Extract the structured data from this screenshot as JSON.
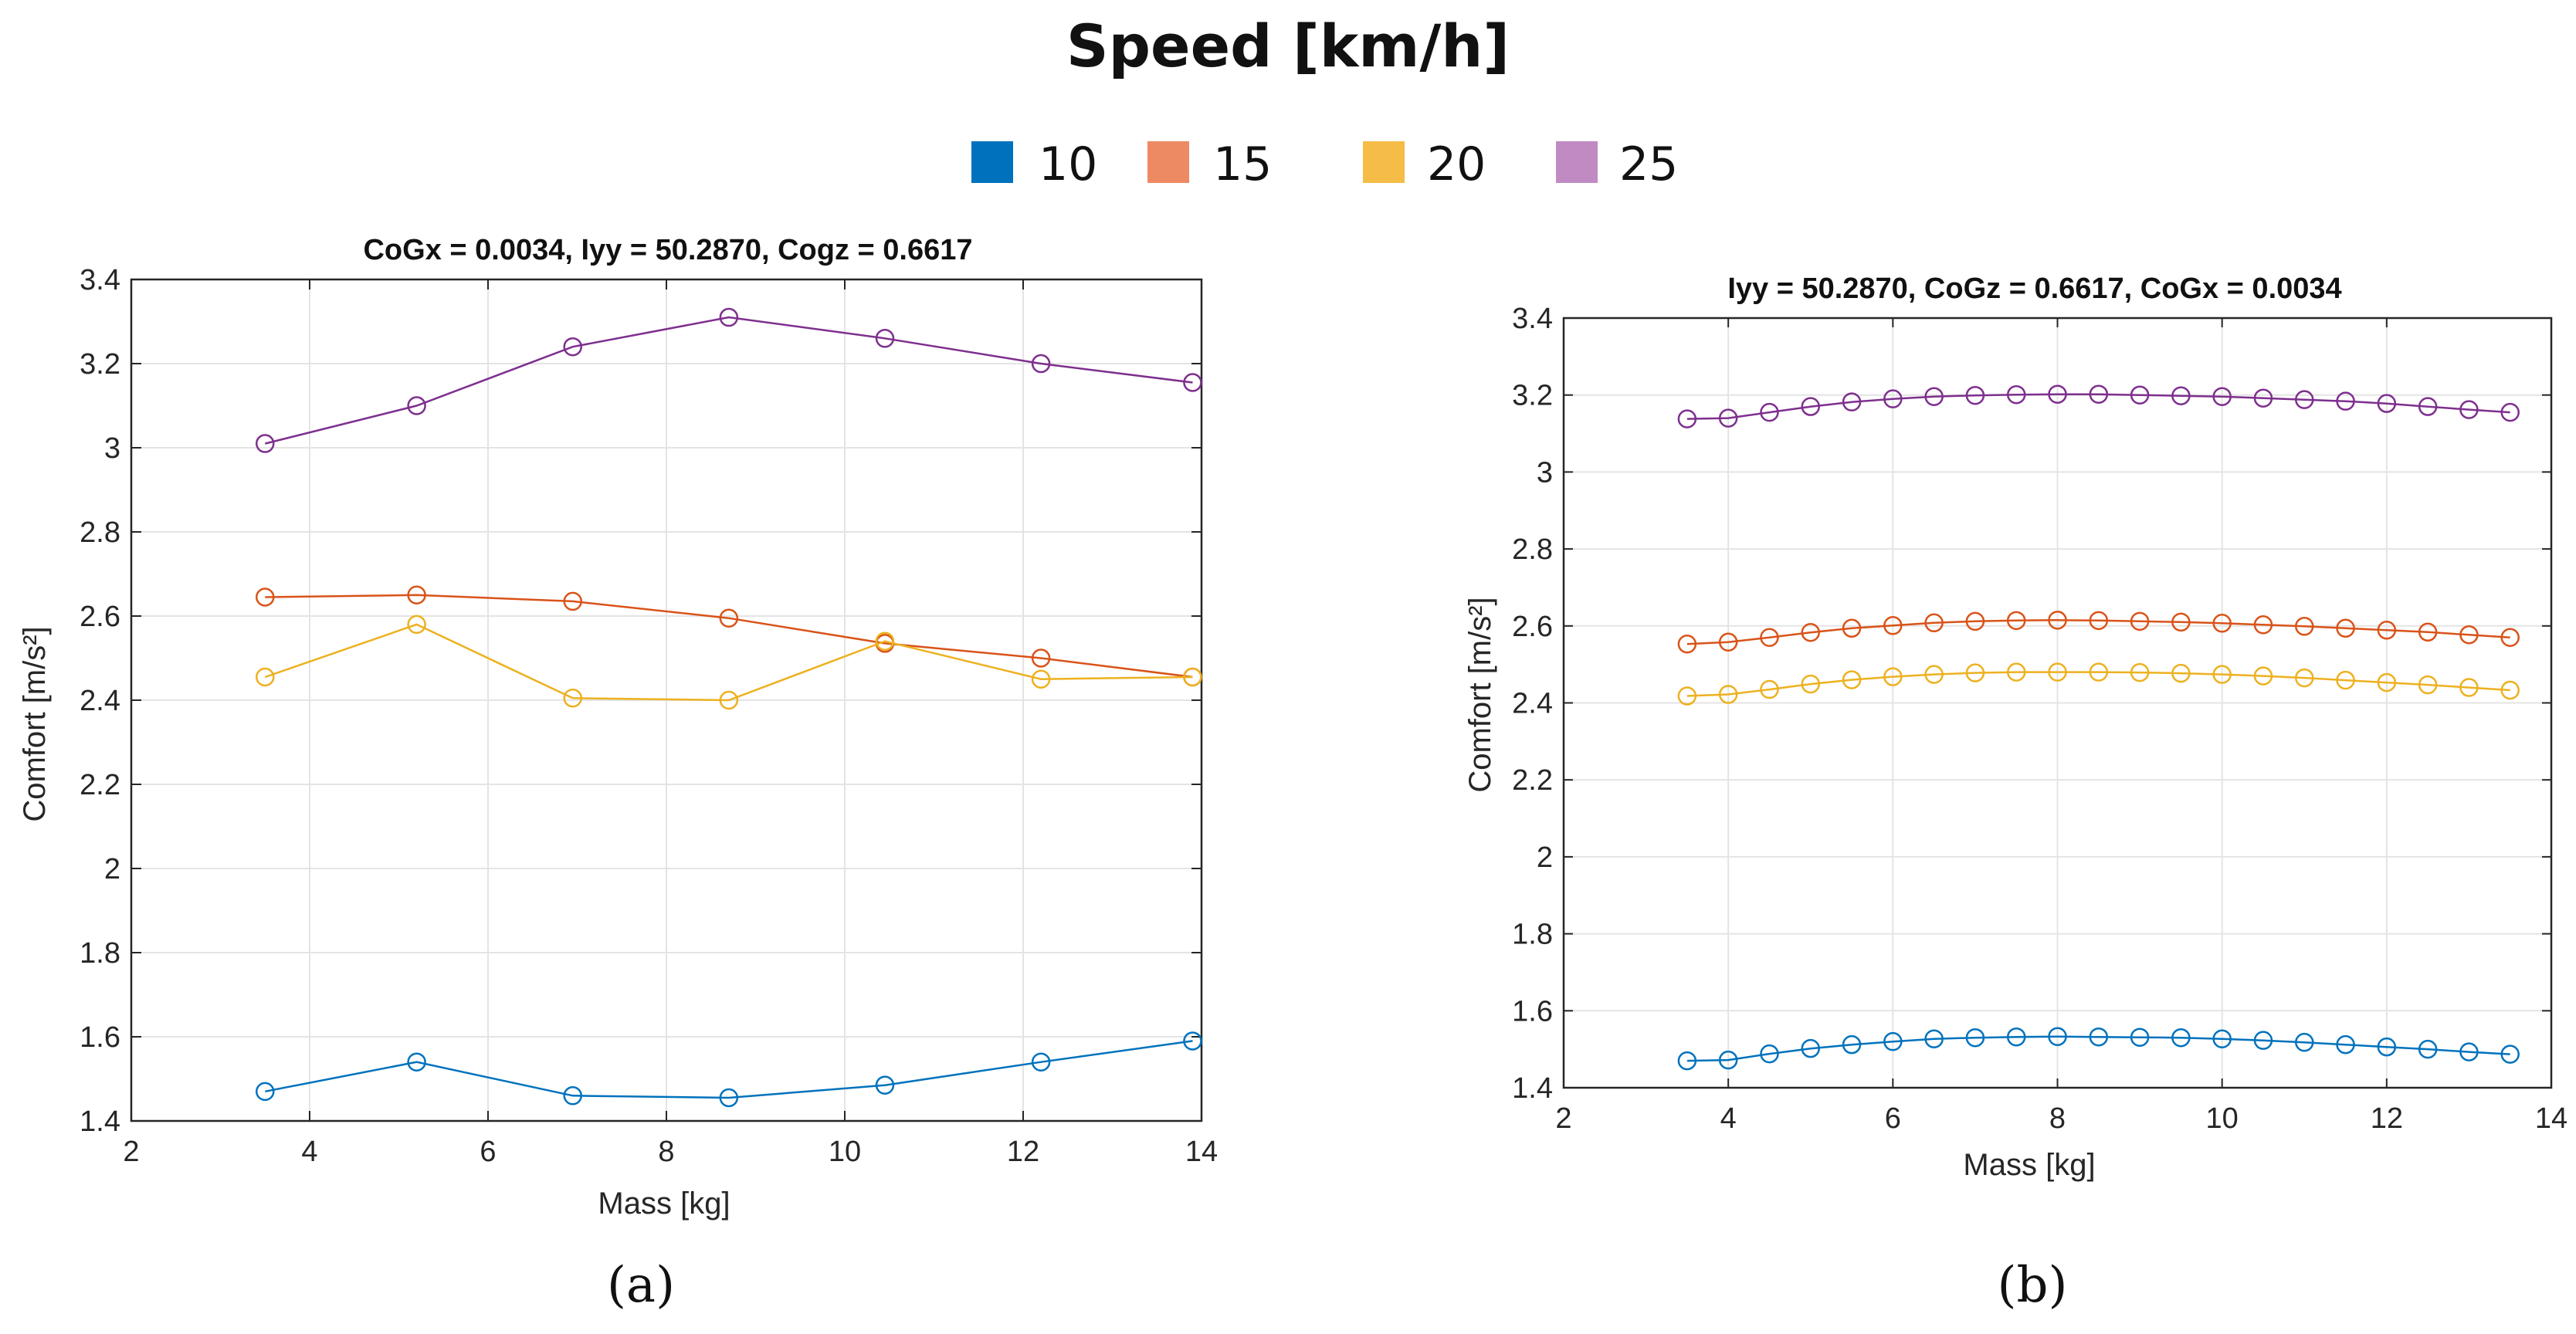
{
  "legend": {
    "title": "Speed [km/h]",
    "entries": [
      {
        "label": "10",
        "color": "#0072BD"
      },
      {
        "label": "15",
        "color": "#EE8A63"
      },
      {
        "label": "20",
        "color": "#F5BC47"
      },
      {
        "label": "25",
        "color": "#C08BC3"
      }
    ]
  },
  "line_colors": [
    "#0072BD",
    "#D95319",
    "#EDB120",
    "#7E2F8E"
  ],
  "chart_data": [
    {
      "type": "line",
      "panel_label": "(a)",
      "title": "CoGx = 0.0034, Iyy = 50.2870,  Cogz = 0.6617",
      "xlabel": "Mass [kg]",
      "ylabel": "Comfort [m/s²]",
      "xlim": [
        2,
        14
      ],
      "ylim": [
        1.4,
        3.4
      ],
      "xticks": [
        2,
        4,
        6,
        8,
        10,
        12,
        14
      ],
      "xtick_labels": [
        "2",
        "4",
        "6",
        "8",
        "10",
        "12",
        "14"
      ],
      "yticks": [
        1.4,
        1.6,
        1.8,
        2,
        2.2,
        2.4,
        2.6,
        2.8,
        3,
        3.2,
        3.4
      ],
      "ytick_labels": [
        "1.4",
        "1.6",
        "1.8",
        "2",
        "2.2",
        "2.4",
        "2.6",
        "2.8",
        "3",
        "3.2",
        "3.4"
      ],
      "grid": true,
      "x": [
        3.5,
        5.2,
        6.95,
        8.7,
        10.45,
        12.2,
        13.9
      ],
      "series": [
        {
          "name": "10",
          "values": [
            1.47,
            1.54,
            1.46,
            1.455,
            1.485,
            1.54,
            1.59
          ]
        },
        {
          "name": "15",
          "values": [
            2.645,
            2.65,
            2.635,
            2.595,
            2.535,
            2.5,
            2.455
          ]
        },
        {
          "name": "20",
          "values": [
            2.455,
            2.58,
            2.405,
            2.4,
            2.54,
            2.45,
            2.455
          ]
        },
        {
          "name": "25",
          "values": [
            3.01,
            3.1,
            3.24,
            3.31,
            3.26,
            3.2,
            3.155
          ]
        }
      ]
    },
    {
      "type": "line",
      "panel_label": "(b)",
      "title": "Iyy = 50.2870, CoGz = 0.6617,  CoGx = 0.0034",
      "xlabel": "Mass [kg]",
      "ylabel": "Comfort [m/s²]",
      "xlim": [
        2,
        14
      ],
      "ylim": [
        1.4,
        3.4
      ],
      "xticks": [
        2,
        4,
        6,
        8,
        10,
        12,
        14
      ],
      "xtick_labels": [
        "2",
        "4",
        "6",
        "8",
        "10",
        "12",
        "14"
      ],
      "yticks": [
        1.4,
        1.6,
        1.8,
        2,
        2.2,
        2.4,
        2.6,
        2.8,
        3,
        3.2,
        3.4
      ],
      "ytick_labels": [
        "1.4",
        "1.6",
        "1.8",
        "2",
        "2.2",
        "2.4",
        "2.6",
        "2.8",
        "3",
        "3.2",
        "3.4"
      ],
      "grid": true,
      "x": [
        3.5,
        4,
        4.5,
        5,
        5.5,
        6,
        6.5,
        7,
        7.5,
        8,
        8.5,
        9,
        9.5,
        10,
        10.5,
        11,
        11.5,
        12,
        12.5,
        13,
        13.5
      ],
      "series": [
        {
          "name": "10",
          "values": [
            1.47,
            1.472,
            1.488,
            1.502,
            1.512,
            1.52,
            1.527,
            1.53,
            1.532,
            1.533,
            1.532,
            1.531,
            1.53,
            1.527,
            1.523,
            1.518,
            1.512,
            1.506,
            1.5,
            1.493,
            1.487
          ]
        },
        {
          "name": "15",
          "values": [
            2.553,
            2.558,
            2.57,
            2.583,
            2.594,
            2.601,
            2.608,
            2.612,
            2.614,
            2.615,
            2.614,
            2.612,
            2.61,
            2.607,
            2.603,
            2.599,
            2.594,
            2.589,
            2.584,
            2.577,
            2.57
          ]
        },
        {
          "name": "20",
          "values": [
            2.418,
            2.422,
            2.435,
            2.449,
            2.46,
            2.468,
            2.474,
            2.478,
            2.48,
            2.48,
            2.48,
            2.479,
            2.477,
            2.474,
            2.47,
            2.465,
            2.459,
            2.453,
            2.447,
            2.44,
            2.433
          ]
        },
        {
          "name": "25",
          "values": [
            3.138,
            3.14,
            3.155,
            3.17,
            3.182,
            3.19,
            3.196,
            3.199,
            3.201,
            3.202,
            3.202,
            3.2,
            3.198,
            3.196,
            3.192,
            3.188,
            3.184,
            3.178,
            3.17,
            3.162,
            3.155
          ]
        }
      ]
    }
  ]
}
